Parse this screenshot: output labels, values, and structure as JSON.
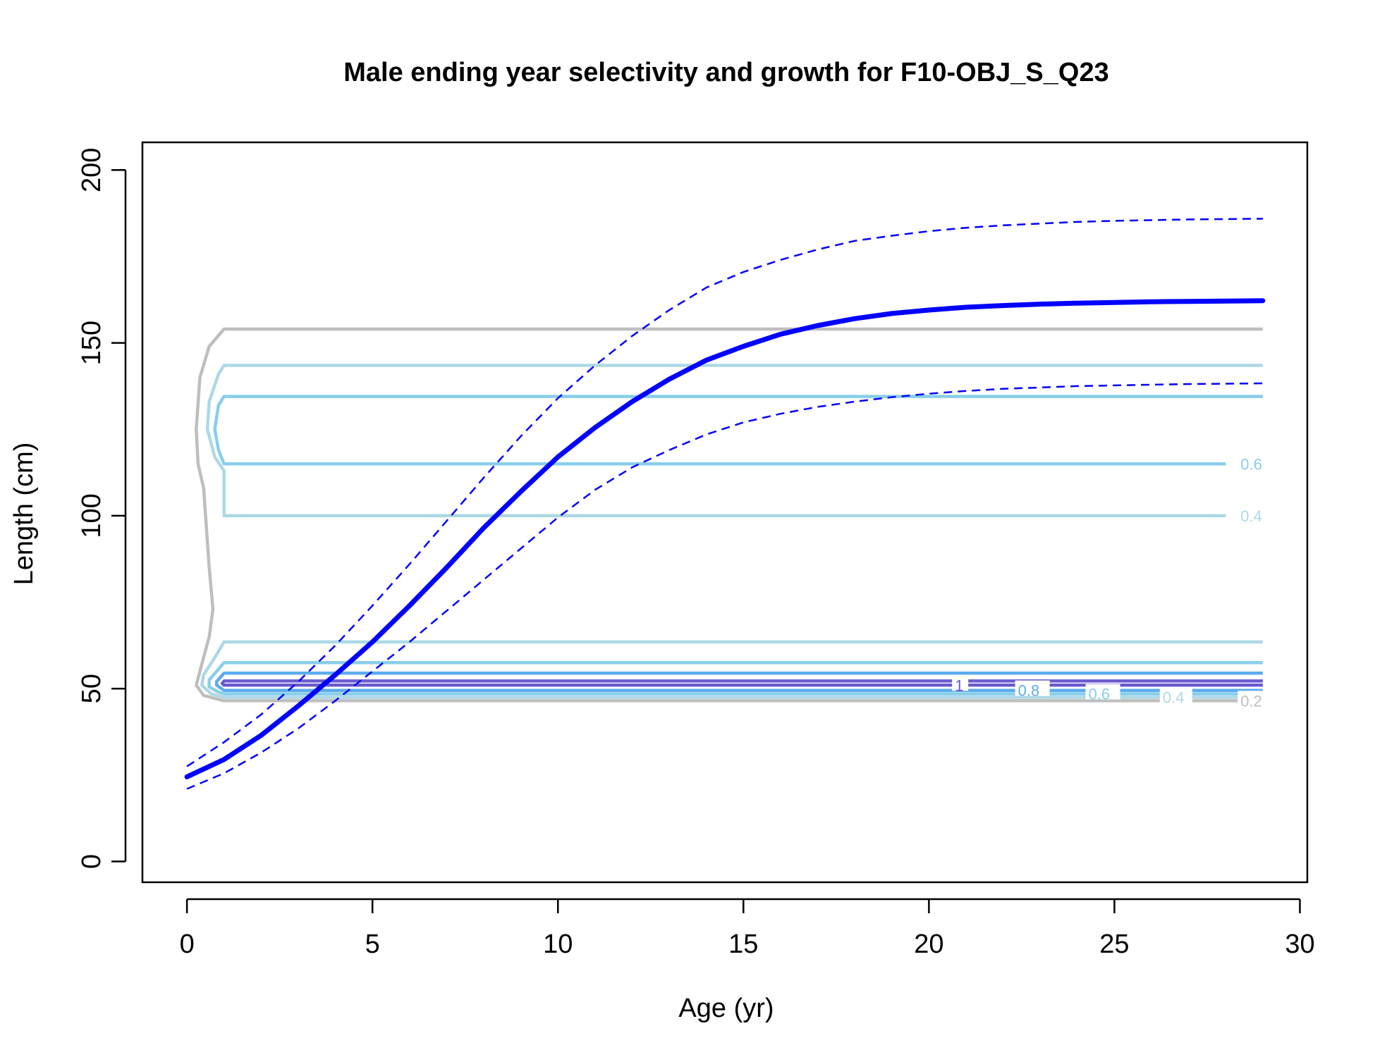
{
  "chart_data": {
    "type": "line",
    "title": "Male ending year selectivity and growth for F10-OBJ_S_Q23",
    "xlabel": "Age (yr)",
    "ylabel": "Length (cm)",
    "xlim": [
      -1.2,
      30.2
    ],
    "ylim": [
      -6,
      208
    ],
    "x_ticks": [
      0,
      5,
      10,
      15,
      20,
      25,
      30
    ],
    "y_ticks": [
      0,
      50,
      100,
      150,
      200
    ],
    "grid": false,
    "growth": {
      "color": "#0000FF",
      "mean": [
        [
          0,
          24.5
        ],
        [
          1,
          29.5
        ],
        [
          2,
          36.5
        ],
        [
          3,
          45
        ],
        [
          4,
          54
        ],
        [
          5,
          63.5
        ],
        [
          6,
          74
        ],
        [
          7,
          85
        ],
        [
          8,
          96.5
        ],
        [
          9,
          107
        ],
        [
          10,
          117
        ],
        [
          11,
          125.5
        ],
        [
          12,
          133
        ],
        [
          13,
          139.5
        ],
        [
          14,
          145
        ],
        [
          15,
          149
        ],
        [
          16,
          152.5
        ],
        [
          17,
          155
        ],
        [
          18,
          157
        ],
        [
          19,
          158.5
        ],
        [
          20,
          159.5
        ],
        [
          21,
          160.3
        ],
        [
          22,
          160.8
        ],
        [
          23,
          161.2
        ],
        [
          24,
          161.5
        ],
        [
          25,
          161.7
        ],
        [
          26,
          161.9
        ],
        [
          27,
          162
        ],
        [
          28,
          162.1
        ],
        [
          29,
          162.2
        ]
      ],
      "upper": [
        [
          0,
          27.5
        ],
        [
          1,
          34.5
        ],
        [
          2,
          42.5
        ],
        [
          3,
          52
        ],
        [
          4,
          62.5
        ],
        [
          5,
          74
        ],
        [
          6,
          86
        ],
        [
          7,
          98.5
        ],
        [
          8,
          111
        ],
        [
          9,
          123
        ],
        [
          10,
          134
        ],
        [
          11,
          143.5
        ],
        [
          12,
          152
        ],
        [
          13,
          159.5
        ],
        [
          14,
          166
        ],
        [
          15,
          170.5
        ],
        [
          16,
          174
        ],
        [
          17,
          177
        ],
        [
          18,
          179.5
        ],
        [
          19,
          181
        ],
        [
          20,
          182.3
        ],
        [
          21,
          183.3
        ],
        [
          22,
          184
        ],
        [
          23,
          184.5
        ],
        [
          24,
          185
        ],
        [
          25,
          185.3
        ],
        [
          26,
          185.5
        ],
        [
          27,
          185.7
        ],
        [
          28,
          185.8
        ],
        [
          29,
          185.9
        ]
      ],
      "lower": [
        [
          0,
          21
        ],
        [
          1,
          25.5
        ],
        [
          2,
          31.5
        ],
        [
          3,
          38.5
        ],
        [
          4,
          46.5
        ],
        [
          5,
          55
        ],
        [
          6,
          63.5
        ],
        [
          7,
          72.5
        ],
        [
          8,
          81.5
        ],
        [
          9,
          90.5
        ],
        [
          10,
          99.5
        ],
        [
          11,
          107.5
        ],
        [
          12,
          114
        ],
        [
          13,
          119
        ],
        [
          14,
          123.5
        ],
        [
          15,
          127
        ],
        [
          16,
          129.5
        ],
        [
          17,
          131.5
        ],
        [
          18,
          133
        ],
        [
          19,
          134.3
        ],
        [
          20,
          135.3
        ],
        [
          21,
          136.1
        ],
        [
          22,
          136.7
        ],
        [
          23,
          137.1
        ],
        [
          24,
          137.5
        ],
        [
          25,
          137.7
        ],
        [
          26,
          137.9
        ],
        [
          27,
          138.1
        ],
        [
          28,
          138.2
        ],
        [
          29,
          138.3
        ]
      ]
    },
    "selectivity_contours": [
      {
        "level": "0.2",
        "color": "#BEBEBE",
        "x_end": 29,
        "label": "0.2",
        "label_x": 28.4,
        "path": [
          [
            29,
            154
          ],
          [
            1,
            154
          ],
          [
            0.6,
            149
          ],
          [
            0.35,
            140
          ],
          [
            0.25,
            125
          ],
          [
            0.3,
            115
          ],
          [
            0.45,
            108
          ],
          [
            0.6,
            85
          ],
          [
            0.7,
            73
          ],
          [
            0.6,
            65
          ],
          [
            0.35,
            55
          ],
          [
            0.25,
            51
          ],
          [
            0.45,
            48
          ],
          [
            1,
            46.5
          ],
          [
            29,
            46.5
          ]
        ]
      },
      {
        "level": "0.4",
        "color": "#ADD8E6",
        "x_end": 29,
        "label": "0.4",
        "label_x": 28.4,
        "path": [
          [
            29,
            143.5
          ],
          [
            1,
            143.5
          ],
          [
            0.85,
            141
          ],
          [
            0.6,
            133
          ],
          [
            0.55,
            125
          ],
          [
            0.75,
            117
          ],
          [
            1,
            113
          ],
          [
            1,
            100
          ],
          [
            28,
            100
          ]
        ]
      },
      {
        "level": "0.6",
        "color": "#87CEEB",
        "x_end": 29,
        "label": "0.6",
        "label_x": 28.4,
        "path": [
          [
            29,
            134.5
          ],
          [
            1,
            134.5
          ],
          [
            0.85,
            132
          ],
          [
            0.75,
            125
          ],
          [
            0.85,
            119
          ],
          [
            1,
            115
          ],
          [
            28,
            115
          ]
        ]
      },
      {
        "level": "0.4",
        "color": "#ADD8E6",
        "x_end": 29,
        "label": "",
        "path": [
          [
            29,
            63.5
          ],
          [
            1,
            63.5
          ],
          [
            0.75,
            59
          ],
          [
            0.45,
            54
          ],
          [
            0.4,
            51
          ],
          [
            0.65,
            48.5
          ],
          [
            1,
            47.5
          ],
          [
            29,
            47.5
          ]
        ]
      },
      {
        "level": "0.6",
        "color": "#87CEEB",
        "x_end": 29,
        "label": "0.6",
        "label_x": 24.3,
        "path": [
          [
            29,
            57.5
          ],
          [
            1,
            57.5
          ],
          [
            0.8,
            55
          ],
          [
            0.6,
            52.5
          ],
          [
            0.6,
            50.5
          ],
          [
            0.85,
            49
          ],
          [
            1,
            48.5
          ],
          [
            29,
            48.5
          ]
        ]
      },
      {
        "level": "0.8",
        "color": "#5CACEE",
        "x_end": 29,
        "label": "0.8",
        "label_x": 22.4,
        "path": [
          [
            29,
            54.5
          ],
          [
            1,
            54.5
          ],
          [
            0.8,
            52
          ],
          [
            0.8,
            51
          ],
          [
            1,
            49.5
          ],
          [
            29,
            49.5
          ]
        ]
      },
      {
        "level": "1",
        "color": "#6A5ACD",
        "x_end": 29,
        "label": "1",
        "label_x": 20.7,
        "path": [
          [
            29,
            52.2
          ],
          [
            1,
            52.2
          ],
          [
            0.95,
            51.5
          ],
          [
            1,
            51
          ],
          [
            29,
            51
          ]
        ]
      }
    ],
    "contour_label_0_4_low_x": 26.3
  }
}
